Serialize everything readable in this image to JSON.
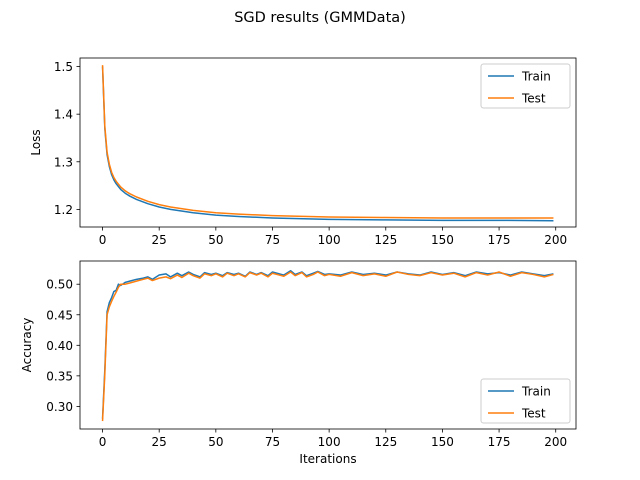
{
  "figure": {
    "title": "SGD results (GMMData)"
  },
  "colors": {
    "train": "#1f77b4",
    "test": "#ff7f0e"
  },
  "chart_data": [
    {
      "type": "line",
      "title": "",
      "xlabel": "",
      "ylabel": "Loss",
      "xlim": [
        -9.95,
        208.95
      ],
      "ylim": [
        1.163,
        1.518
      ],
      "xticks": [
        0,
        25,
        50,
        75,
        100,
        125,
        150,
        175,
        200
      ],
      "yticks": [
        1.2,
        1.3,
        1.4,
        1.5
      ],
      "ytick_labels": [
        "1.2",
        "1.3",
        "1.4",
        "1.5"
      ],
      "grid": false,
      "legend": "top-right",
      "series": [
        {
          "name": "Train",
          "x": [
            0,
            1,
            2,
            3,
            4,
            5,
            6,
            8,
            10,
            12,
            15,
            20,
            25,
            30,
            40,
            50,
            60,
            75,
            100,
            125,
            150,
            175,
            199
          ],
          "values": [
            1.5,
            1.37,
            1.315,
            1.29,
            1.273,
            1.262,
            1.254,
            1.242,
            1.234,
            1.228,
            1.221,
            1.212,
            1.205,
            1.2,
            1.193,
            1.188,
            1.185,
            1.182,
            1.179,
            1.178,
            1.177,
            1.177,
            1.176
          ]
        },
        {
          "name": "Test",
          "x": [
            0,
            1,
            2,
            3,
            4,
            5,
            6,
            8,
            10,
            12,
            15,
            20,
            25,
            30,
            40,
            50,
            60,
            75,
            100,
            125,
            150,
            175,
            199
          ],
          "values": [
            1.503,
            1.375,
            1.32,
            1.295,
            1.278,
            1.267,
            1.259,
            1.247,
            1.239,
            1.233,
            1.226,
            1.217,
            1.21,
            1.205,
            1.198,
            1.193,
            1.19,
            1.187,
            1.184,
            1.183,
            1.182,
            1.182,
            1.182
          ]
        }
      ]
    },
    {
      "type": "line",
      "title": "",
      "xlabel": "Iterations",
      "ylabel": "Accuracy",
      "xlim": [
        -9.95,
        208.95
      ],
      "ylim": [
        0.263,
        0.538
      ],
      "xticks": [
        0,
        25,
        50,
        75,
        100,
        125,
        150,
        175,
        200
      ],
      "yticks": [
        0.3,
        0.35,
        0.4,
        0.45,
        0.5
      ],
      "ytick_labels": [
        "0.30",
        "0.35",
        "0.40",
        "0.45",
        "0.50"
      ],
      "grid": false,
      "legend": "bottom-right",
      "series": [
        {
          "name": "Train",
          "x": [
            0,
            1,
            2,
            3,
            4,
            5,
            6,
            7,
            8,
            10,
            12,
            15,
            18,
            20,
            22,
            25,
            28,
            30,
            33,
            35,
            38,
            40,
            43,
            45,
            48,
            50,
            53,
            55,
            58,
            60,
            63,
            65,
            68,
            70,
            73,
            75,
            78,
            80,
            83,
            85,
            88,
            90,
            93,
            95,
            98,
            100,
            105,
            110,
            115,
            120,
            125,
            130,
            135,
            140,
            145,
            150,
            155,
            160,
            165,
            170,
            175,
            180,
            185,
            190,
            195,
            199
          ],
          "values": [
            0.28,
            0.36,
            0.455,
            0.47,
            0.478,
            0.488,
            0.49,
            0.5,
            0.498,
            0.503,
            0.505,
            0.508,
            0.51,
            0.512,
            0.508,
            0.515,
            0.517,
            0.512,
            0.518,
            0.514,
            0.52,
            0.516,
            0.512,
            0.519,
            0.516,
            0.518,
            0.514,
            0.519,
            0.516,
            0.518,
            0.513,
            0.52,
            0.516,
            0.519,
            0.514,
            0.52,
            0.517,
            0.515,
            0.522,
            0.516,
            0.52,
            0.514,
            0.518,
            0.521,
            0.516,
            0.517,
            0.515,
            0.52,
            0.516,
            0.518,
            0.515,
            0.52,
            0.517,
            0.515,
            0.52,
            0.516,
            0.519,
            0.514,
            0.52,
            0.517,
            0.519,
            0.515,
            0.52,
            0.517,
            0.514,
            0.517
          ]
        },
        {
          "name": "Test",
          "x": [
            0,
            1,
            2,
            3,
            4,
            5,
            6,
            7,
            8,
            10,
            12,
            15,
            18,
            20,
            22,
            25,
            28,
            30,
            33,
            35,
            38,
            40,
            43,
            45,
            48,
            50,
            53,
            55,
            58,
            60,
            63,
            65,
            68,
            70,
            73,
            75,
            78,
            80,
            83,
            85,
            88,
            90,
            93,
            95,
            98,
            100,
            105,
            110,
            115,
            120,
            125,
            130,
            135,
            140,
            145,
            150,
            155,
            160,
            165,
            170,
            175,
            180,
            185,
            190,
            195,
            199
          ],
          "values": [
            0.276,
            0.352,
            0.45,
            0.463,
            0.472,
            0.48,
            0.487,
            0.495,
            0.5,
            0.5,
            0.502,
            0.505,
            0.508,
            0.51,
            0.506,
            0.51,
            0.512,
            0.509,
            0.515,
            0.511,
            0.518,
            0.514,
            0.51,
            0.517,
            0.514,
            0.517,
            0.512,
            0.518,
            0.514,
            0.517,
            0.512,
            0.519,
            0.515,
            0.518,
            0.512,
            0.518,
            0.515,
            0.513,
            0.52,
            0.514,
            0.519,
            0.512,
            0.516,
            0.52,
            0.514,
            0.516,
            0.513,
            0.519,
            0.514,
            0.517,
            0.513,
            0.52,
            0.516,
            0.514,
            0.519,
            0.515,
            0.518,
            0.512,
            0.519,
            0.515,
            0.52,
            0.513,
            0.519,
            0.516,
            0.512,
            0.516
          ]
        }
      ]
    }
  ]
}
